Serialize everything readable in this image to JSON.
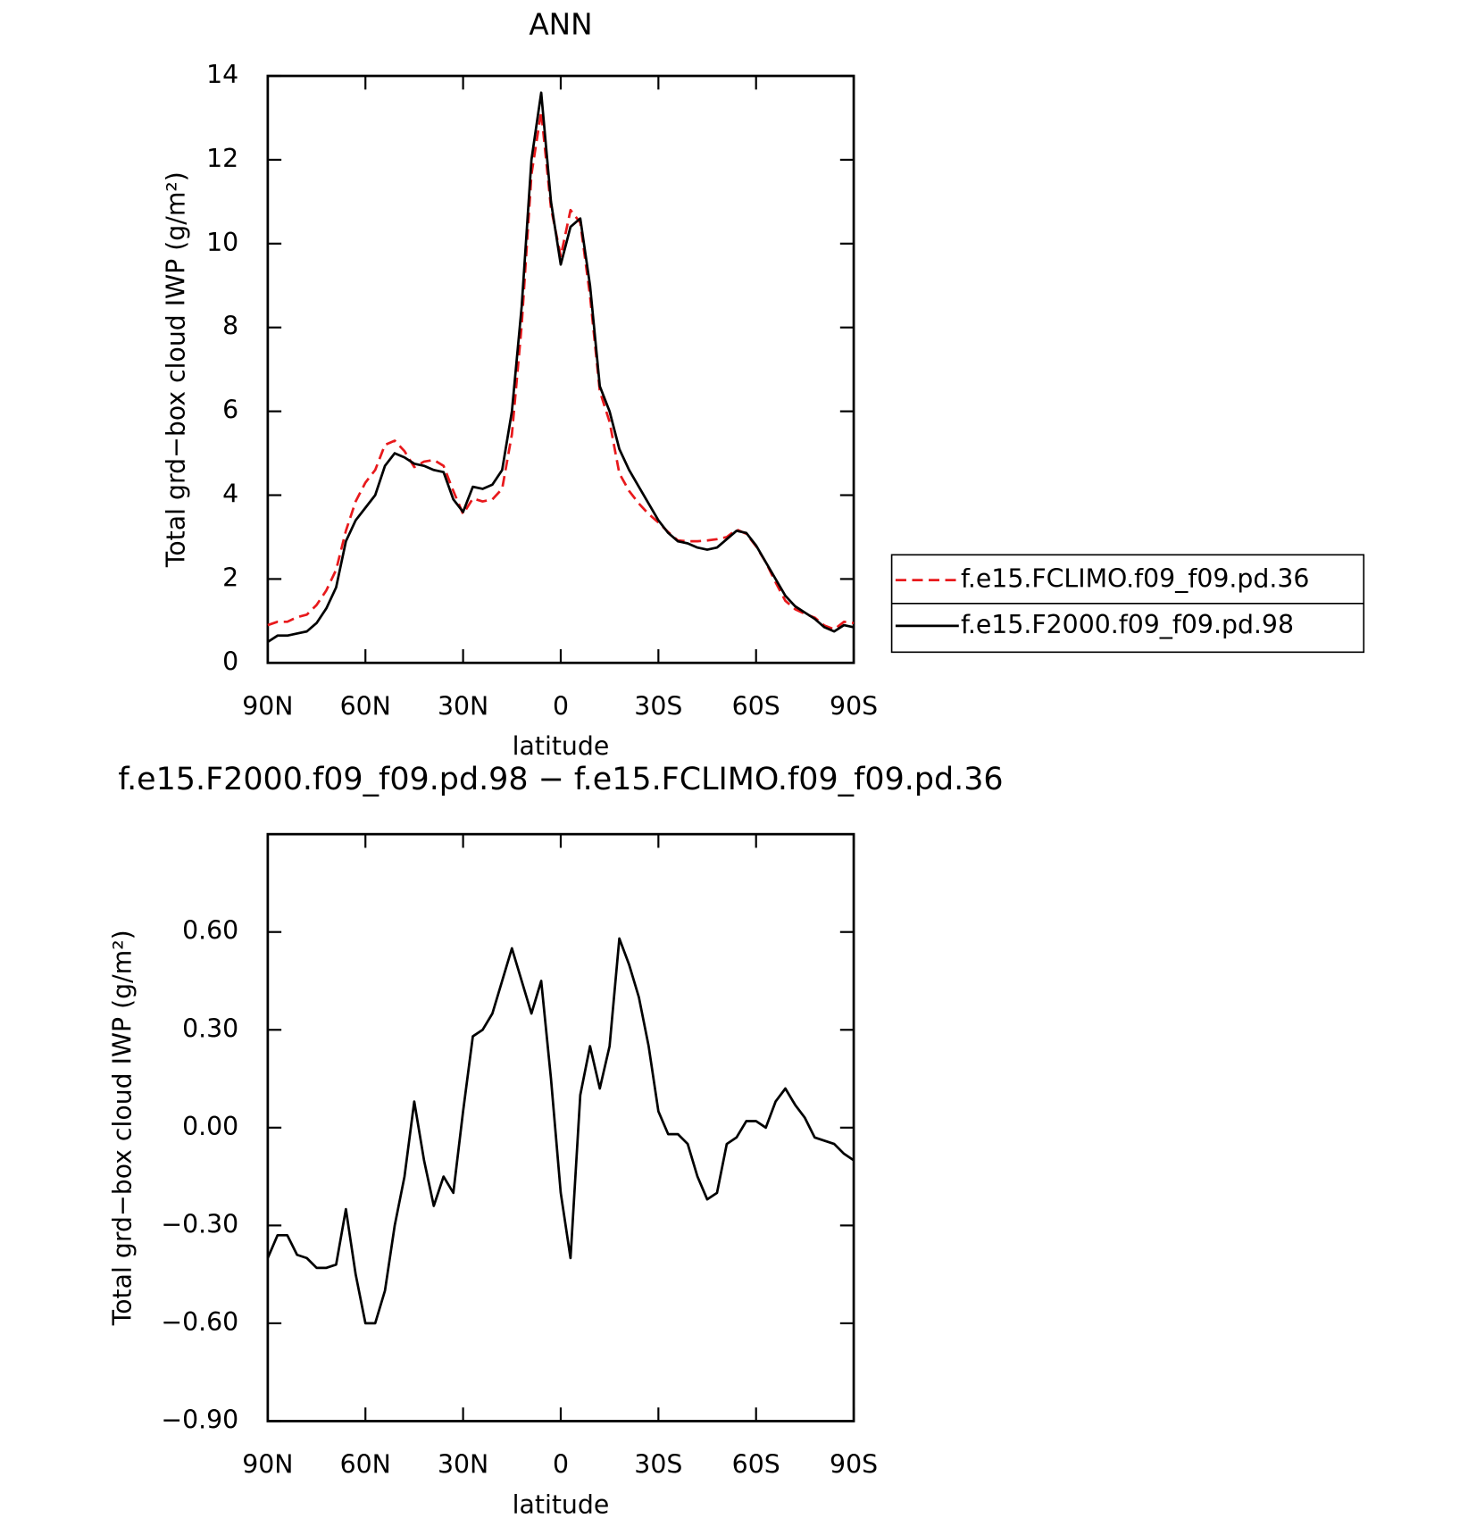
{
  "chart_data": [
    {
      "type": "line",
      "title": "ANN",
      "xlabel": "latitude",
      "ylabel": "Total grd−box cloud IWP (g/m²)",
      "x": [
        90,
        87,
        84,
        81,
        78,
        75,
        72,
        69,
        66,
        63,
        60,
        57,
        54,
        51,
        48,
        45,
        42,
        39,
        36,
        33,
        30,
        27,
        24,
        21,
        18,
        15,
        12,
        9,
        6,
        3,
        0,
        -3,
        -6,
        -9,
        -12,
        -15,
        -18,
        -21,
        -24,
        -27,
        -30,
        -33,
        -36,
        -39,
        -42,
        -45,
        -48,
        -51,
        -54,
        -57,
        -60,
        -63,
        -66,
        -69,
        -72,
        -75,
        -78,
        -81,
        -84,
        -87,
        -90
      ],
      "xlim": [
        90,
        -90
      ],
      "xticks": [
        {
          "value": 90,
          "label": "90N"
        },
        {
          "value": 60,
          "label": "60N"
        },
        {
          "value": 30,
          "label": "30N"
        },
        0,
        {
          "value": -30,
          "label": "30S"
        },
        {
          "value": -60,
          "label": "60S"
        },
        {
          "value": -90,
          "label": "90S"
        }
      ],
      "ylim": [
        0,
        14
      ],
      "yticks": [
        0,
        2,
        4,
        6,
        8,
        10,
        12,
        14
      ],
      "legend": "right",
      "series": [
        {
          "name": "f.e15.FCLIMO.f09_f09.pd.36",
          "color": "#e8191c",
          "linestyle": "dashed",
          "values": [
            0.9,
            0.98,
            0.98,
            1.09,
            1.15,
            1.38,
            1.73,
            2.22,
            3.15,
            3.85,
            4.3,
            4.6,
            5.2,
            5.3,
            5.05,
            4.67,
            4.8,
            4.84,
            4.7,
            4.1,
            3.55,
            3.92,
            3.85,
            3.9,
            4.15,
            5.45,
            8.05,
            11.65,
            13.15,
            10.85,
            9.7,
            10.8,
            10.5,
            8.75,
            6.48,
            5.75,
            4.52,
            4.1,
            3.8,
            3.55,
            3.35,
            3.12,
            2.92,
            2.9,
            2.9,
            2.92,
            2.95,
            3.0,
            3.18,
            3.08,
            2.78,
            2.4,
            1.92,
            1.48,
            1.28,
            1.17,
            1.08,
            0.89,
            0.8,
            0.98,
            0.95
          ]
        },
        {
          "name": "f.e15.F2000.f09_f09.pd.98",
          "color": "#000000",
          "linestyle": "solid",
          "values": [
            0.5,
            0.65,
            0.65,
            0.7,
            0.75,
            0.95,
            1.3,
            1.8,
            2.9,
            3.4,
            3.7,
            4.0,
            4.7,
            5.0,
            4.9,
            4.75,
            4.7,
            4.6,
            4.55,
            3.9,
            3.6,
            4.2,
            4.15,
            4.25,
            4.6,
            6.0,
            8.5,
            12.0,
            13.6,
            11.0,
            9.5,
            10.4,
            10.6,
            9.0,
            6.6,
            6.0,
            5.1,
            4.6,
            4.2,
            3.8,
            3.4,
            3.1,
            2.9,
            2.85,
            2.75,
            2.7,
            2.75,
            2.95,
            3.15,
            3.1,
            2.8,
            2.4,
            2.0,
            1.6,
            1.35,
            1.2,
            1.05,
            0.85,
            0.75,
            0.9,
            0.85
          ]
        }
      ]
    },
    {
      "type": "line",
      "title": "f.e15.F2000.f09_f09.pd.98 − f.e15.FCLIMO.f09_f09.pd.36",
      "xlabel": "latitude",
      "ylabel": "Total grd−box cloud IWP (g/m²)",
      "x": [
        90,
        87,
        84,
        81,
        78,
        75,
        72,
        69,
        66,
        63,
        60,
        57,
        54,
        51,
        48,
        45,
        42,
        39,
        36,
        33,
        30,
        27,
        24,
        21,
        18,
        15,
        12,
        9,
        6,
        3,
        0,
        -3,
        -6,
        -9,
        -12,
        -15,
        -18,
        -21,
        -24,
        -27,
        -30,
        -33,
        -36,
        -39,
        -42,
        -45,
        -48,
        -51,
        -54,
        -57,
        -60,
        -63,
        -66,
        -69,
        -72,
        -75,
        -78,
        -81,
        -84,
        -87,
        -90
      ],
      "xlim": [
        90,
        -90
      ],
      "xticks": [
        {
          "value": 90,
          "label": "90N"
        },
        {
          "value": 60,
          "label": "60N"
        },
        {
          "value": 30,
          "label": "30N"
        },
        0,
        {
          "value": -30,
          "label": "30S"
        },
        {
          "value": -60,
          "label": "60S"
        },
        {
          "value": -90,
          "label": "90S"
        }
      ],
      "ylim": [
        -0.9,
        0.9
      ],
      "yticks": [
        {
          "value": -0.9,
          "label": "−0.90"
        },
        {
          "value": -0.6,
          "label": "−0.60"
        },
        {
          "value": -0.3,
          "label": "−0.30"
        },
        {
          "value": 0,
          "label": "0.00"
        },
        {
          "value": 0.3,
          "label": "0.30"
        },
        {
          "value": 0.6,
          "label": "0.60"
        }
      ],
      "series": [
        {
          "color": "#000000",
          "linestyle": "solid",
          "values": [
            -0.4,
            -0.33,
            -0.33,
            -0.39,
            -0.4,
            -0.43,
            -0.43,
            -0.42,
            -0.25,
            -0.45,
            -0.6,
            -0.6,
            -0.5,
            -0.3,
            -0.15,
            0.08,
            -0.1,
            -0.24,
            -0.15,
            -0.2,
            0.05,
            0.28,
            0.3,
            0.35,
            0.45,
            0.55,
            0.45,
            0.35,
            0.45,
            0.15,
            -0.2,
            -0.4,
            0.1,
            0.25,
            0.12,
            0.25,
            0.58,
            0.5,
            0.4,
            0.25,
            0.05,
            -0.02,
            -0.02,
            -0.05,
            -0.15,
            -0.22,
            -0.2,
            -0.05,
            -0.03,
            0.02,
            0.02,
            0.0,
            0.08,
            0.12,
            0.07,
            0.03,
            -0.03,
            -0.04,
            -0.05,
            -0.08,
            -0.1
          ]
        }
      ]
    }
  ]
}
